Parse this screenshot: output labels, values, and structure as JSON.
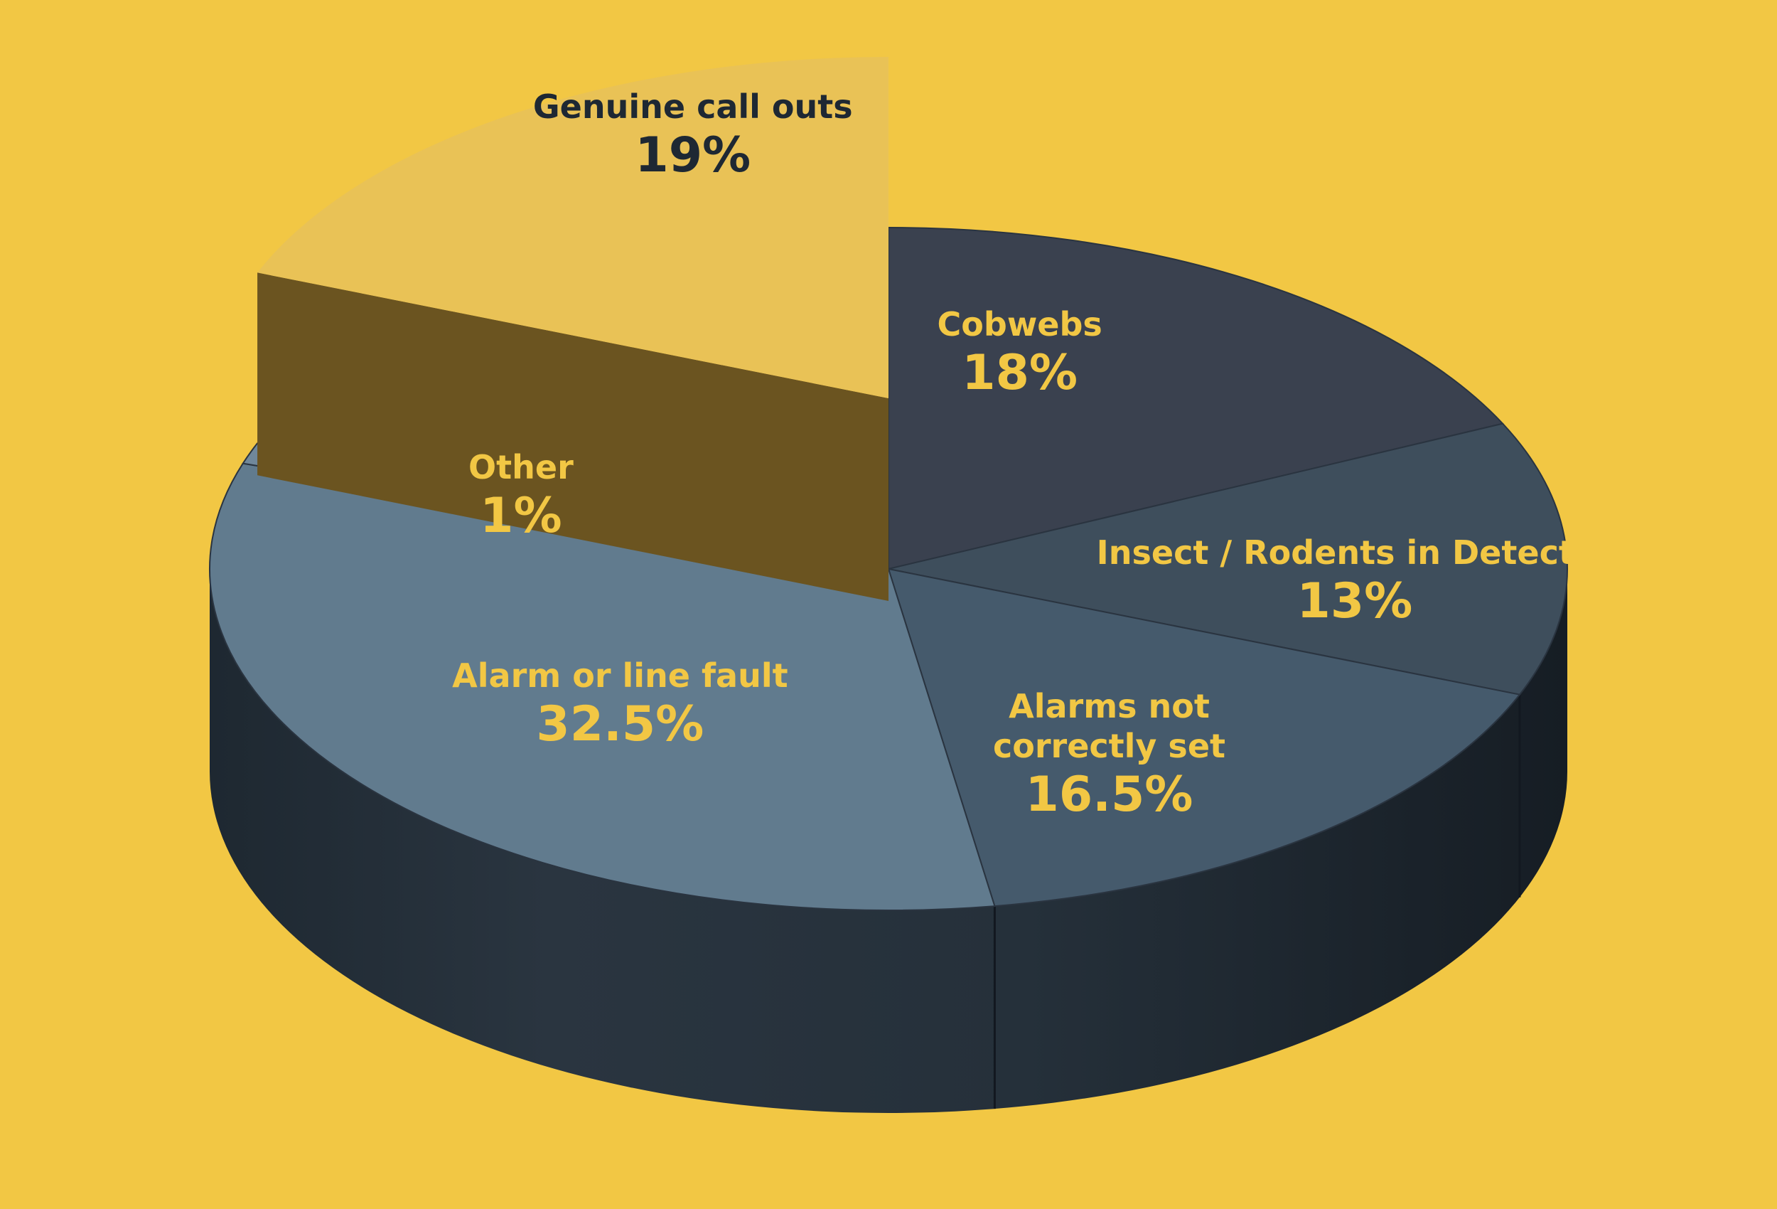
{
  "chart_data": {
    "type": "pie",
    "title": "",
    "slices": [
      {
        "label": "Cobwebs",
        "value_label": "18%",
        "value": 18,
        "color": "#3a414f",
        "text_color": "#f2c744"
      },
      {
        "label": "Insect / Rodents in Detector",
        "value_label": "13%",
        "value": 13,
        "color": "#3e4e5c",
        "text_color": "#f2c744"
      },
      {
        "label": "Alarms not correctly set",
        "value_label": "16.5%",
        "value": 16.5,
        "color": "#455a6c",
        "text_color": "#f2c744"
      },
      {
        "label": "Alarm or line fault",
        "value_label": "32.5%",
        "value": 32.5,
        "color": "#617b8e",
        "text_color": "#f2c744"
      },
      {
        "label": "Other",
        "value_label": "1%",
        "value": 1,
        "color": "#70889b",
        "text_color": "#f2c744"
      },
      {
        "label": "Genuine call outs",
        "value_label": "19%",
        "value": 19,
        "color": "#e9c256",
        "text_color": "#1e2833",
        "exploded": true
      }
    ],
    "style": "3d-exploded",
    "background": "#f2c744",
    "side_color": "#25303a"
  }
}
